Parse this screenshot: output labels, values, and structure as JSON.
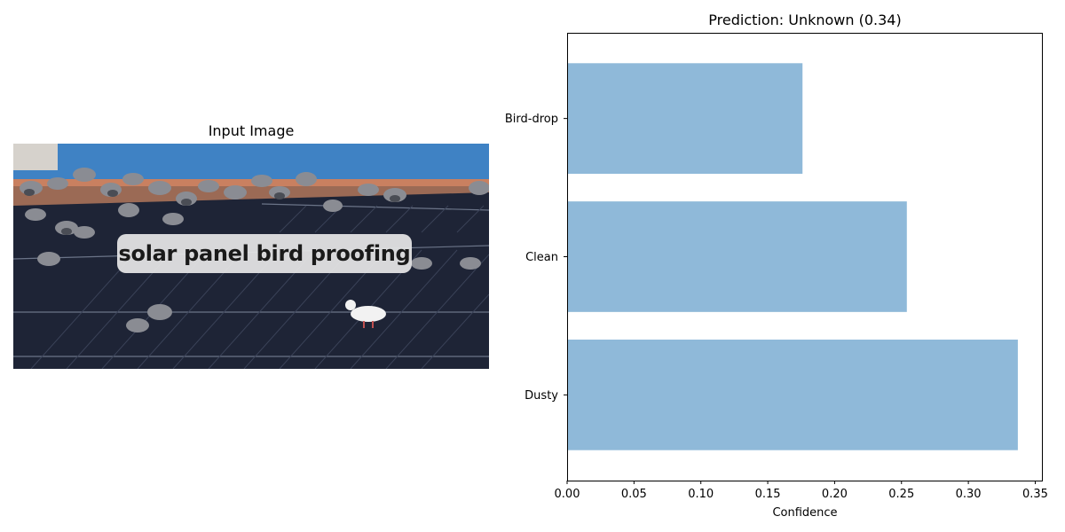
{
  "image_panel": {
    "title": "Input Image",
    "overlay_text": "solar panel bird proofing"
  },
  "chart_data": {
    "type": "bar",
    "orientation": "horizontal",
    "title": "Prediction: Unknown (0.34)",
    "xlabel": "Confidence",
    "ylabel": "",
    "categories": [
      "Dusty",
      "Clean",
      "Bird-drop"
    ],
    "values": [
      0.337,
      0.254,
      0.176
    ],
    "xlim": [
      0,
      0.355
    ],
    "xticks": [
      0.0,
      0.05,
      0.1,
      0.15,
      0.2,
      0.25,
      0.3,
      0.35
    ],
    "xtick_labels": [
      "0.00",
      "0.05",
      "0.10",
      "0.15",
      "0.20",
      "0.25",
      "0.30",
      "0.35"
    ],
    "bar_color": "#8fb9d9",
    "grid": false,
    "legend": "none"
  }
}
